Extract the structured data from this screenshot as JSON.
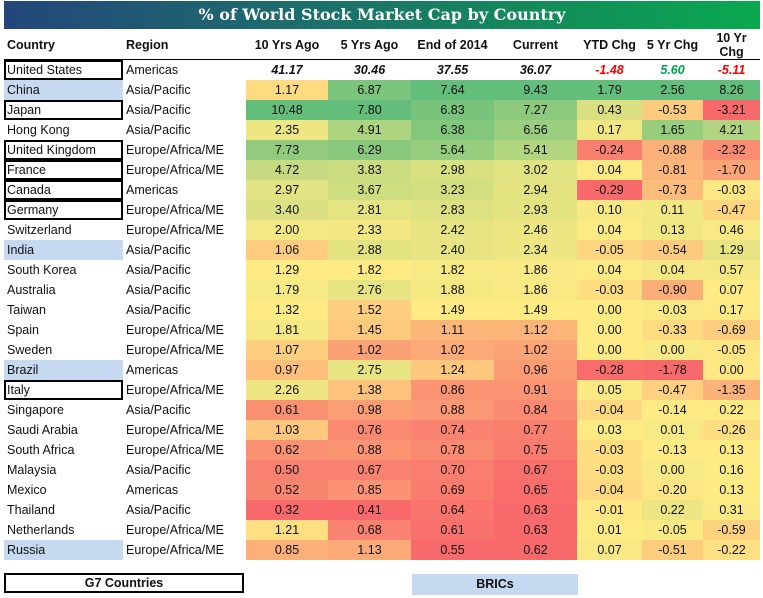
{
  "title": "% of World Stock Market Cap by Country",
  "columns": [
    "Country",
    "Region",
    "10 Yrs Ago",
    "5 Yrs Ago",
    "End of 2014",
    "Current",
    "YTD Chg",
    "5 Yr Chg",
    "10 Yr Chg"
  ],
  "colors": {
    "low": "#f8696b",
    "mid": "#ffeb84",
    "high": "#63be7b",
    "bric_fill": "#c5d9f1",
    "negative_text": "#ff0000",
    "positive_text": "#00a050"
  },
  "rows": [
    {
      "country": "United States",
      "region": "Americas",
      "group": "g7",
      "values": [
        "41.17",
        "30.46",
        "37.55",
        "36.07",
        "-1.48",
        "5.60",
        "-5.11"
      ]
    },
    {
      "country": "China",
      "region": "Asia/Pacific",
      "group": "bric",
      "values": [
        "1.17",
        "6.87",
        "7.64",
        "9.43",
        "1.79",
        "2.56",
        "8.26"
      ]
    },
    {
      "country": "Japan",
      "region": "Asia/Pacific",
      "group": "g7",
      "values": [
        "10.48",
        "7.80",
        "6.83",
        "7.27",
        "0.43",
        "-0.53",
        "-3.21"
      ]
    },
    {
      "country": "Hong Kong",
      "region": "Asia/Pacific",
      "group": "",
      "values": [
        "2.35",
        "4.91",
        "6.38",
        "6.56",
        "0.17",
        "1.65",
        "4.21"
      ]
    },
    {
      "country": "United Kingdom",
      "region": "Europe/Africa/ME",
      "group": "g7",
      "values": [
        "7.73",
        "6.29",
        "5.64",
        "5.41",
        "-0.24",
        "-0.88",
        "-2.32"
      ]
    },
    {
      "country": "France",
      "region": "Europe/Africa/ME",
      "group": "g7",
      "values": [
        "4.72",
        "3.83",
        "2.98",
        "3.02",
        "0.04",
        "-0.81",
        "-1.70"
      ]
    },
    {
      "country": "Canada",
      "region": "Americas",
      "group": "g7",
      "values": [
        "2.97",
        "3.67",
        "3.23",
        "2.94",
        "-0.29",
        "-0.73",
        "-0.03"
      ]
    },
    {
      "country": "Germany",
      "region": "Europe/Africa/ME",
      "group": "g7",
      "values": [
        "3.40",
        "2.81",
        "2.83",
        "2.93",
        "0.10",
        "0.11",
        "-0.47"
      ]
    },
    {
      "country": "Switzerland",
      "region": "Europe/Africa/ME",
      "group": "",
      "values": [
        "2.00",
        "2.33",
        "2.42",
        "2.46",
        "0.04",
        "0.13",
        "0.46"
      ]
    },
    {
      "country": "India",
      "region": "Asia/Pacific",
      "group": "bric",
      "values": [
        "1.06",
        "2.88",
        "2.40",
        "2.34",
        "-0.05",
        "-0.54",
        "1.29"
      ]
    },
    {
      "country": "South Korea",
      "region": "Asia/Pacific",
      "group": "",
      "values": [
        "1.29",
        "1.82",
        "1.82",
        "1.86",
        "0.04",
        "0.04",
        "0.57"
      ]
    },
    {
      "country": "Australia",
      "region": "Asia/Pacific",
      "group": "",
      "values": [
        "1.79",
        "2.76",
        "1.88",
        "1.86",
        "-0.03",
        "-0.90",
        "0.07"
      ]
    },
    {
      "country": "Taiwan",
      "region": "Asia/Pacific",
      "group": "",
      "values": [
        "1.32",
        "1.52",
        "1.49",
        "1.49",
        "0.00",
        "-0.03",
        "0.17"
      ]
    },
    {
      "country": "Spain",
      "region": "Europe/Africa/ME",
      "group": "",
      "values": [
        "1.81",
        "1.45",
        "1.11",
        "1.12",
        "0.00",
        "-0.33",
        "-0.69"
      ]
    },
    {
      "country": "Sweden",
      "region": "Europe/Africa/ME",
      "group": "",
      "values": [
        "1.07",
        "1.02",
        "1.02",
        "1.02",
        "0.00",
        "0.00",
        "-0.05"
      ]
    },
    {
      "country": "Brazil",
      "region": "Americas",
      "group": "bric",
      "values": [
        "0.97",
        "2.75",
        "1.24",
        "0.96",
        "-0.28",
        "-1.78",
        "0.00"
      ]
    },
    {
      "country": "Italy",
      "region": "Europe/Africa/ME",
      "group": "g7",
      "values": [
        "2.26",
        "1.38",
        "0.86",
        "0.91",
        "0.05",
        "-0.47",
        "-1.35"
      ]
    },
    {
      "country": "Singapore",
      "region": "Asia/Pacific",
      "group": "",
      "values": [
        "0.61",
        "0.98",
        "0.88",
        "0.84",
        "-0.04",
        "-0.14",
        "0.22"
      ]
    },
    {
      "country": "Saudi Arabia",
      "region": "Europe/Africa/ME",
      "group": "",
      "values": [
        "1.03",
        "0.76",
        "0.74",
        "0.77",
        "0.03",
        "0.01",
        "-0.26"
      ]
    },
    {
      "country": "South Africa",
      "region": "Europe/Africa/ME",
      "group": "",
      "values": [
        "0.62",
        "0.88",
        "0.78",
        "0.75",
        "-0.03",
        "-0.13",
        "0.13"
      ]
    },
    {
      "country": "Malaysia",
      "region": "Asia/Pacific",
      "group": "",
      "values": [
        "0.50",
        "0.67",
        "0.70",
        "0.67",
        "-0.03",
        "0.00",
        "0.16"
      ]
    },
    {
      "country": "Mexico",
      "region": "Americas",
      "group": "",
      "values": [
        "0.52",
        "0.85",
        "0.69",
        "0.65",
        "-0.04",
        "-0.20",
        "0.13"
      ]
    },
    {
      "country": "Thailand",
      "region": "Asia/Pacific",
      "group": "",
      "values": [
        "0.32",
        "0.41",
        "0.64",
        "0.63",
        "-0.01",
        "0.22",
        "0.31"
      ]
    },
    {
      "country": "Netherlands",
      "region": "Europe/Africa/ME",
      "group": "",
      "values": [
        "1.21",
        "0.68",
        "0.61",
        "0.63",
        "0.01",
        "-0.05",
        "-0.59"
      ]
    },
    {
      "country": "Russia",
      "region": "Europe/Africa/ME",
      "group": "bric",
      "values": [
        "0.85",
        "1.13",
        "0.55",
        "0.62",
        "0.07",
        "-0.51",
        "-0.22"
      ]
    }
  ],
  "legend": {
    "g7_label": "G7 Countries",
    "bric_label": "BRICs"
  }
}
